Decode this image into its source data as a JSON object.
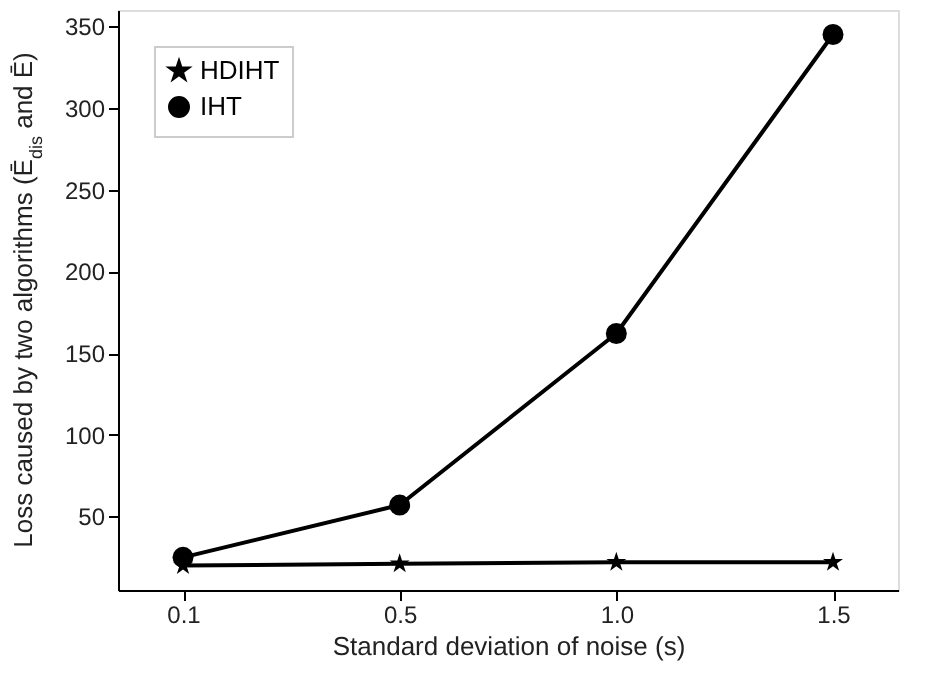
{
  "chart_data": {
    "type": "line",
    "xlabel": "Standard deviation of noise (s)",
    "ylabel": "Loss caused by two algorithms (Ē$_{dis}$ and Ē)",
    "categories": [
      "0.1",
      "0.5",
      "1.0",
      "1.5"
    ],
    "series": [
      {
        "name": "HDIHT",
        "color": "#000000",
        "marker": "star",
        "values": [
          20,
          21,
          22,
          22
        ]
      },
      {
        "name": "IHT",
        "color": "#000000",
        "marker": "circle",
        "values": [
          25,
          57,
          162,
          345
        ]
      }
    ],
    "ylim": [
      5,
      360
    ],
    "yticks": [
      50,
      100,
      150,
      200,
      250,
      300,
      350
    ],
    "grid": false,
    "legend": "top left",
    "line_style": "solid"
  }
}
